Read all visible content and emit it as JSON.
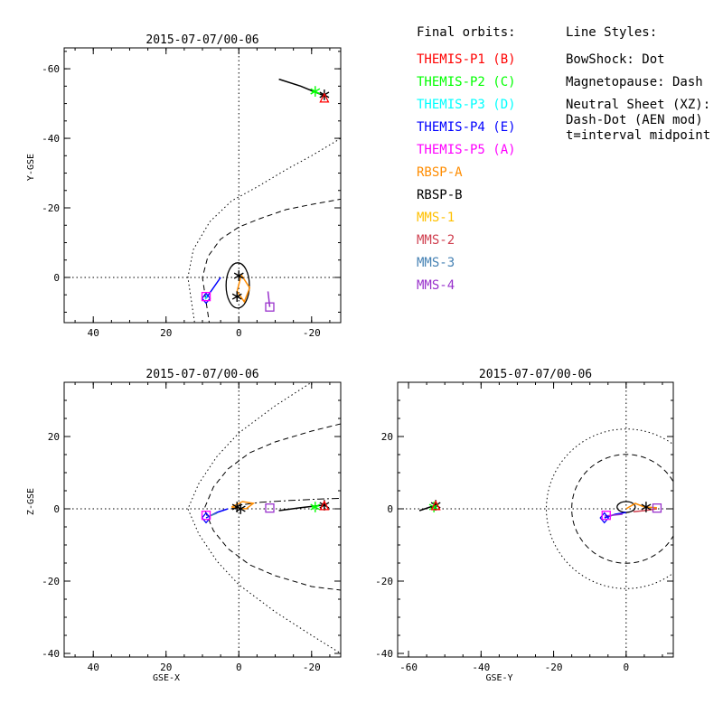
{
  "legend": {
    "orbits_heading": "Final orbits:",
    "styles_heading": "Line Styles:",
    "orbit_entries": [
      {
        "label": "THEMIS-P1 (B)",
        "color": "#ff0000"
      },
      {
        "label": "THEMIS-P2 (C)",
        "color": "#00ff00"
      },
      {
        "label": "THEMIS-P3 (D)",
        "color": "#00ffff"
      },
      {
        "label": "THEMIS-P4 (E)",
        "color": "#0000ff"
      },
      {
        "label": "THEMIS-P5 (A)",
        "color": "#ff00ff"
      },
      {
        "label": "RBSP-A",
        "color": "#ff8c00"
      },
      {
        "label": "RBSP-B",
        "color": "#000000"
      },
      {
        "label": "MMS-1",
        "color": "#ffc000"
      },
      {
        "label": "MMS-2",
        "color": "#d04050"
      },
      {
        "label": "MMS-3",
        "color": "#4682b4"
      },
      {
        "label": "MMS-4",
        "color": "#9932cc"
      }
    ],
    "style_lines": [
      "BowShock: Dot",
      "Magnetopause: Dash",
      "Neutral Sheet (XZ):",
      "  Dash-Dot (AEN mod)",
      "  t=interval midpoint"
    ]
  },
  "colors": {
    "themis_p1": "#ff0000",
    "themis_p2": "#00ff00",
    "themis_p3": "#00ffff",
    "themis_p4": "#0000ff",
    "themis_p5": "#ff00ff",
    "rbsp_a": "#ff8c00",
    "rbsp_b": "#000000",
    "mms1": "#ffc000",
    "mms2": "#d04050",
    "mms3": "#4682b4",
    "mms4": "#9932cc",
    "axes": "#000000"
  },
  "chart_data": [
    {
      "type": "scatter",
      "title": "2015-07-07/00-06",
      "xlabel": "",
      "ylabel": "Y-GSE",
      "xlim": [
        48,
        -28
      ],
      "ylim": [
        13,
        -66
      ],
      "xticks": [
        40,
        20,
        0,
        -20
      ],
      "xtick_labels": [
        "40",
        "20",
        "0",
        "-20"
      ],
      "yticks": [
        0,
        -20,
        -40,
        -60
      ],
      "ytick_labels": [
        "0",
        "-20",
        "-40",
        "-60"
      ],
      "reference_lines": {
        "x": 0,
        "y": 0,
        "style": "dotted"
      },
      "boundaries": [
        {
          "name": "BowShock",
          "style": "dotted",
          "points": [
            [
              12,
              14
            ],
            [
              14,
              0
            ],
            [
              12.5,
              -8
            ],
            [
              8,
              -16
            ],
            [
              2,
              -22
            ],
            [
              -5,
              -26
            ],
            [
              -13,
              -31
            ],
            [
              -20,
              -35
            ],
            [
              -28,
              -40
            ]
          ]
        },
        {
          "name": "Magnetopause",
          "style": "dashed",
          "points": [
            [
              8,
              14
            ],
            [
              10,
              0
            ],
            [
              8.5,
              -6
            ],
            [
              5,
              -11
            ],
            [
              0,
              -14.5
            ],
            [
              -6,
              -17
            ],
            [
              -13,
              -19.5
            ],
            [
              -20,
              -21
            ],
            [
              -28,
              -22.5
            ]
          ]
        }
      ],
      "orbits": [
        {
          "spacecraft": "RBSP-B",
          "color": "#000000",
          "points": [
            [
              -11,
              -57
            ],
            [
              -17,
              -55
            ],
            [
              -24,
              -52
            ]
          ]
        },
        {
          "spacecraft": "THEMIS-P2 (C)",
          "color": "#00ff00",
          "points": [
            [
              -20,
              -53.5
            ],
            [
              -22,
              -53
            ]
          ]
        },
        {
          "spacecraft": "THEMIS-P4 (E)",
          "color": "#0000ff",
          "points": [
            [
              9,
              6
            ],
            [
              7,
              3
            ],
            [
              5,
              0
            ]
          ]
        },
        {
          "spacecraft": "THEMIS-P3 (D)",
          "color": "#00ffff",
          "points": [
            [
              9.2,
              6.2
            ],
            [
              8.6,
              5
            ]
          ]
        },
        {
          "spacecraft": "RBSP-A",
          "color": "#ff8c00",
          "points": [
            [
              -0.5,
              -1
            ],
            [
              -3,
              3
            ],
            [
              -1.5,
              7
            ],
            [
              0.5,
              4
            ],
            [
              -0.5,
              0
            ]
          ]
        },
        {
          "spacecraft": "MMS-4",
          "color": "#9932cc",
          "points": [
            [
              -8,
              4
            ],
            [
              -8.5,
              8.5
            ]
          ]
        }
      ],
      "rbsp_b_loop": {
        "center": [
          0.3,
          2.3
        ],
        "half_width": 3.2,
        "half_height": 6.5
      },
      "markers": [
        {
          "spacecraft": "RBSP-B",
          "shape": "asterisk",
          "color": "#000000",
          "x": -23.5,
          "y": -52.5
        },
        {
          "spacecraft": "THEMIS-P2 (C)",
          "shape": "asterisk",
          "color": "#00ff00",
          "x": -21,
          "y": -53.5
        },
        {
          "spacecraft": "THEMIS-P1 (B)",
          "shape": "triangle",
          "color": "#ff0000",
          "x": -23.5,
          "y": -51.5
        },
        {
          "spacecraft": "THEMIS-P4 (E)",
          "shape": "diamond",
          "color": "#0000ff",
          "x": 9,
          "y": 6
        },
        {
          "spacecraft": "THEMIS-P5 (A)",
          "shape": "square",
          "color": "#ff00ff",
          "x": 9,
          "y": 5.5
        },
        {
          "spacecraft": "RBSP-B",
          "shape": "asterisk",
          "color": "#000000",
          "x": 0.5,
          "y": 5.5
        },
        {
          "spacecraft": "RBSP-B",
          "shape": "asterisk",
          "color": "#000000",
          "x": 0,
          "y": -0.5
        },
        {
          "spacecraft": "MMS-4",
          "shape": "square",
          "color": "#9932cc",
          "x": -8.5,
          "y": 8.5
        }
      ]
    },
    {
      "type": "scatter",
      "title": "2015-07-07/00-06",
      "xlabel": "GSE-X",
      "ylabel": "Z-GSE",
      "xlim": [
        48,
        -28
      ],
      "ylim": [
        -41,
        35
      ],
      "xticks": [
        40,
        20,
        0,
        -20
      ],
      "xtick_labels": [
        "40",
        "20",
        "0",
        "-20"
      ],
      "yticks": [
        -40,
        -20,
        0,
        20
      ],
      "ytick_labels": [
        "-40",
        "-20",
        "0",
        "20"
      ],
      "reference_lines": {
        "x": 0,
        "y": 0,
        "style": "dotted"
      },
      "boundaries": [
        {
          "name": "BowShock",
          "style": "dotted",
          "points": [
            [
              -28,
              40
            ],
            [
              -20,
              35
            ],
            [
              -10,
              28.5
            ],
            [
              0,
              21
            ],
            [
              6,
              14.5
            ],
            [
              11,
              7
            ],
            [
              14,
              0
            ],
            [
              11,
              -7
            ],
            [
              6,
              -14.5
            ],
            [
              0,
              -21
            ],
            [
              -10,
              -28.5
            ],
            [
              -20,
              -35
            ],
            [
              -28,
              -40
            ]
          ]
        },
        {
          "name": "Magnetopause",
          "style": "dashed",
          "points": [
            [
              -28,
              23.5
            ],
            [
              -20,
              21.5
            ],
            [
              -10,
              18.5
            ],
            [
              -3,
              15.5
            ],
            [
              3,
              11
            ],
            [
              7,
              6
            ],
            [
              9.5,
              0
            ],
            [
              7,
              -6
            ],
            [
              3,
              -11
            ],
            [
              -3,
              -15.5
            ],
            [
              -10,
              -18.5
            ],
            [
              -20,
              -21.5
            ],
            [
              -28,
              -22.5
            ]
          ]
        },
        {
          "name": "Neutral Sheet",
          "style": "dash-dot",
          "points": [
            [
              2,
              0
            ],
            [
              0,
              1
            ],
            [
              -6,
              1.8
            ],
            [
              -14,
              2.3
            ],
            [
              -22,
              2.7
            ],
            [
              -28,
              2.9
            ]
          ]
        }
      ],
      "orbits": [
        {
          "spacecraft": "RBSP-B",
          "color": "#000000",
          "points": [
            [
              -11,
              -0.5
            ],
            [
              -17,
              0.3
            ],
            [
              -23,
              1
            ]
          ]
        },
        {
          "spacecraft": "THEMIS-P2 (C)",
          "color": "#00ff00",
          "points": [
            [
              -20,
              0.5
            ],
            [
              -22,
              0.8
            ]
          ]
        },
        {
          "spacecraft": "THEMIS-P4 (E)",
          "color": "#0000ff",
          "points": [
            [
              9,
              -2.5
            ],
            [
              6,
              -1
            ],
            [
              3,
              0
            ]
          ]
        },
        {
          "spacecraft": "MMS-3",
          "color": "#4682b4",
          "points": [
            [
              8.5,
              -2.2
            ],
            [
              6,
              -1.2
            ]
          ]
        },
        {
          "spacecraft": "RBSP-A",
          "color": "#ff8c00",
          "points": [
            [
              2,
              0.5
            ],
            [
              -1,
              2
            ],
            [
              -4,
              1.5
            ],
            [
              -2,
              0
            ],
            [
              2,
              0.5
            ]
          ]
        }
      ],
      "markers": [
        {
          "spacecraft": "RBSP-B",
          "shape": "asterisk",
          "color": "#000000",
          "x": -23.5,
          "y": 1
        },
        {
          "spacecraft": "THEMIS-P2 (C)",
          "shape": "asterisk",
          "color": "#00ff00",
          "x": -21,
          "y": 0.5
        },
        {
          "spacecraft": "THEMIS-P1 (B)",
          "shape": "triangle",
          "color": "#ff0000",
          "x": -23.5,
          "y": 0.8
        },
        {
          "spacecraft": "THEMIS-P4 (E)",
          "shape": "diamond",
          "color": "#0000ff",
          "x": 9,
          "y": -2.5
        },
        {
          "spacecraft": "THEMIS-P5 (A)",
          "shape": "square",
          "color": "#ff00ff",
          "x": 9,
          "y": -1.8
        },
        {
          "spacecraft": "RBSP-B",
          "shape": "asterisk",
          "color": "#000000",
          "x": 0.5,
          "y": 0.5
        },
        {
          "spacecraft": "RBSP-B",
          "shape": "asterisk",
          "color": "#000000",
          "x": -0.5,
          "y": 0
        },
        {
          "spacecraft": "MMS-4",
          "shape": "square",
          "color": "#9932cc",
          "x": -8.5,
          "y": 0.2
        }
      ]
    },
    {
      "type": "scatter",
      "title": "2015-07-07/00-06",
      "xlabel": "GSE-Y",
      "ylabel": "",
      "xlim": [
        -63,
        13
      ],
      "ylim": [
        -41,
        35
      ],
      "xticks": [
        -60,
        -40,
        -20,
        0
      ],
      "xtick_labels": [
        "-60",
        "-40",
        "-20",
        "0"
      ],
      "yticks": [
        -40,
        -20,
        0,
        20
      ],
      "ytick_labels": [
        "-40",
        "-20",
        "0",
        "20"
      ],
      "reference_lines": {
        "x": 0,
        "y": 0,
        "style": "dotted"
      },
      "boundaries": [
        {
          "name": "BowShock",
          "style": "dotted",
          "circle": {
            "cx": 0,
            "cy": 0,
            "r": 22
          }
        },
        {
          "name": "Magnetopause",
          "style": "dashed",
          "circle": {
            "cx": 0,
            "cy": 0,
            "r": 15
          }
        }
      ],
      "orbits": [
        {
          "spacecraft": "RBSP-B",
          "color": "#000000",
          "points": [
            [
              -57,
              -0.5
            ],
            [
              -52.5,
              1
            ]
          ]
        },
        {
          "spacecraft": "THEMIS-P4 (E)",
          "color": "#0000ff",
          "points": [
            [
              -6,
              -2.5
            ],
            [
              -3,
              -1.5
            ],
            [
              0,
              -1
            ]
          ]
        },
        {
          "spacecraft": "MMS-4",
          "color": "#9932cc",
          "points": [
            [
              -6,
              -2
            ],
            [
              -1,
              -1.5
            ]
          ]
        },
        {
          "spacecraft": "RBSP-A",
          "color": "#ff8c00",
          "points": [
            [
              0,
              0
            ],
            [
              2.5,
              1.5
            ],
            [
              5,
              0.5
            ],
            [
              8.5,
              0.3
            ]
          ]
        },
        {
          "spacecraft": "MMS-2",
          "color": "#d04050",
          "points": [
            [
              2,
              -0.8
            ],
            [
              5,
              -0.5
            ],
            [
              8.5,
              0
            ]
          ]
        }
      ],
      "rbsp_b_loop": {
        "center": [
          0,
          0.5
        ],
        "half_width": 2.5,
        "half_height": 1.5
      },
      "markers": [
        {
          "spacecraft": "RBSP-B",
          "shape": "asterisk",
          "color": "#000000",
          "x": -52.5,
          "y": 1
        },
        {
          "spacecraft": "THEMIS-P2 (C)",
          "shape": "asterisk",
          "color": "#00ff00",
          "x": -53,
          "y": 0.5
        },
        {
          "spacecraft": "THEMIS-P1 (B)",
          "shape": "triangle",
          "color": "#ff0000",
          "x": -52.5,
          "y": 0.8
        },
        {
          "spacecraft": "THEMIS-P4 (E)",
          "shape": "diamond",
          "color": "#0000ff",
          "x": -6,
          "y": -2.5
        },
        {
          "spacecraft": "THEMIS-P5 (A)",
          "shape": "square",
          "color": "#ff00ff",
          "x": -5.5,
          "y": -1.8
        },
        {
          "spacecraft": "RBSP-B",
          "shape": "asterisk",
          "color": "#000000",
          "x": 5.5,
          "y": 0.5
        },
        {
          "spacecraft": "MMS-4",
          "shape": "square",
          "color": "#9932cc",
          "x": 8.5,
          "y": 0.2
        }
      ]
    }
  ]
}
